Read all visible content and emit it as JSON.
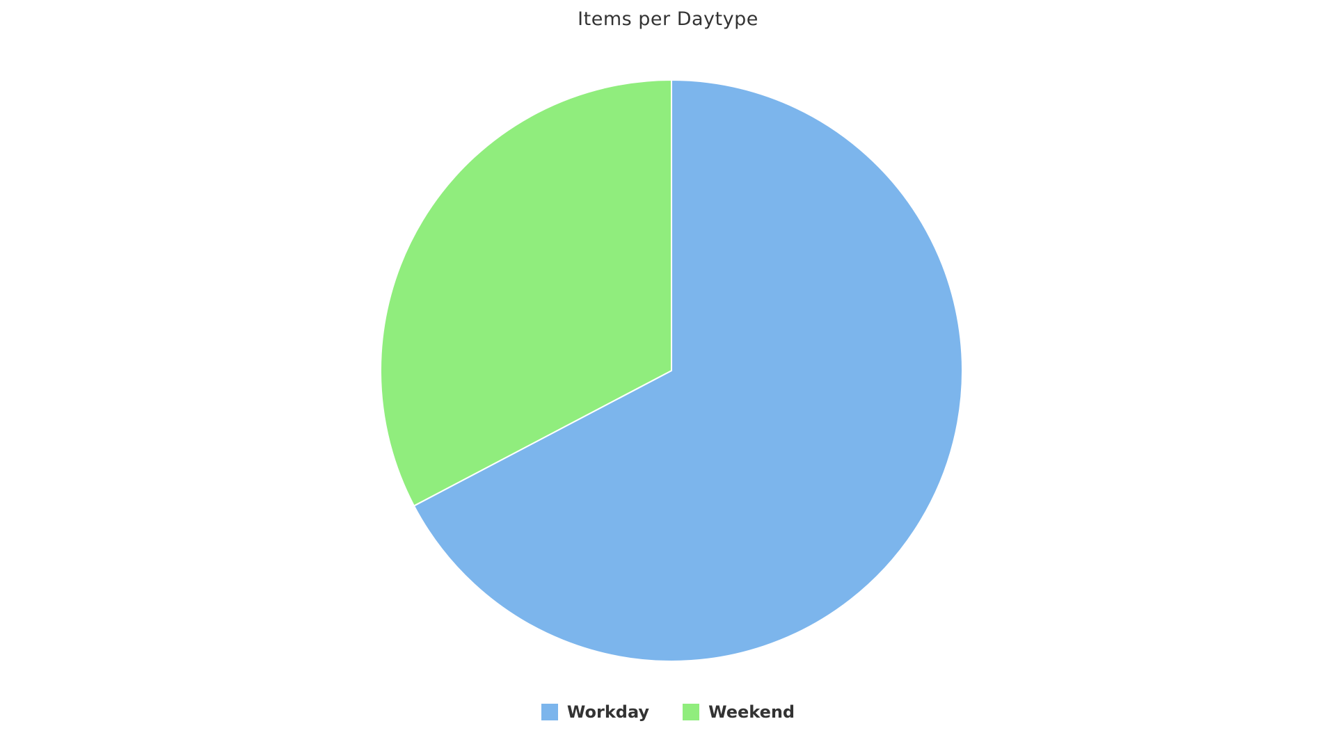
{
  "chart_data": {
    "type": "pie",
    "title": "Items per Daytype",
    "slices": [
      {
        "label": "Workday",
        "value": 67.3,
        "color": "#7cb5ec"
      },
      {
        "label": "Weekend",
        "value": 32.7,
        "color": "#90ed7d"
      }
    ],
    "legend_position": "bottom-center"
  }
}
